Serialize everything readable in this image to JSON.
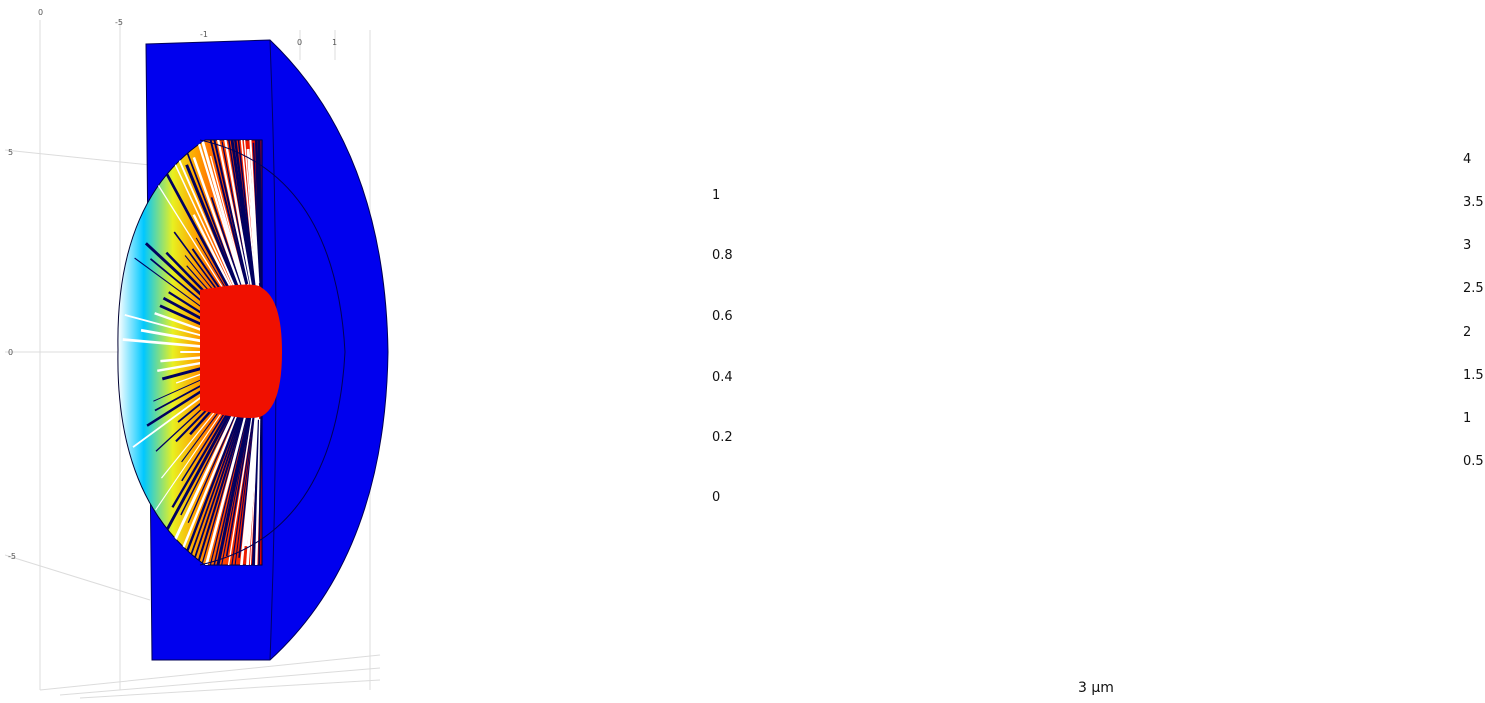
{
  "panel1": {
    "axis_labels": {
      "top": [
        "0",
        "-5",
        "-1",
        "0",
        "1"
      ],
      "left": [
        "5",
        "0",
        "-5"
      ]
    }
  },
  "colorbar1": {
    "ticks": [
      "1",
      "0.8",
      "0.6",
      "0.4",
      "0.2",
      "0"
    ],
    "values": [
      1,
      0.8,
      0.6,
      0.4,
      0.2,
      0
    ],
    "min": 0,
    "max": 1.12
  },
  "colorbar2": {
    "ticks": [
      "4",
      "3.5",
      "3",
      "2.5",
      "2",
      "1.5",
      "1",
      "0.5"
    ],
    "values": [
      4,
      3.5,
      3,
      2.5,
      2,
      1.5,
      1,
      0.5
    ],
    "min": 0,
    "max": 4
  },
  "scale_bar": {
    "label": "3 µm"
  },
  "colormap": [
    "#0000cc",
    "#0060ff",
    "#00c8ff",
    "#66e8a0",
    "#e8f020",
    "#ffb000",
    "#ff4000",
    "#e00000"
  ]
}
